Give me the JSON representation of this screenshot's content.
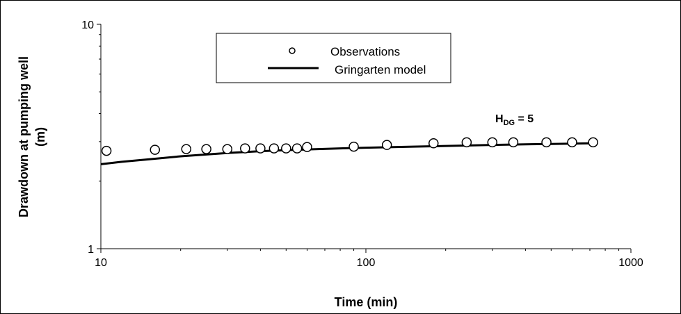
{
  "chart_data": {
    "type": "scatter",
    "x_scale": "log",
    "y_scale": "log",
    "xlabel": "Time (min)",
    "ylabel": "Drawdown at pumping well\n(m)",
    "xlim": [
      10,
      1000
    ],
    "ylim": [
      1,
      10
    ],
    "x_ticks": [
      "10",
      "100",
      "1000"
    ],
    "y_ticks": [
      "1",
      "10"
    ],
    "grid": false,
    "legend_position": "top-center",
    "series": [
      {
        "name": "Observations",
        "type": "scatter",
        "marker": "open-circle",
        "color": "#000000",
        "x": [
          10.5,
          16,
          21,
          25,
          30,
          35,
          40,
          45,
          50,
          55,
          60,
          90,
          120,
          180,
          240,
          300,
          360,
          480,
          600,
          720
        ],
        "y": [
          2.73,
          2.76,
          2.78,
          2.78,
          2.78,
          2.8,
          2.8,
          2.8,
          2.8,
          2.8,
          2.84,
          2.85,
          2.9,
          2.95,
          2.98,
          2.98,
          2.98,
          2.98,
          2.98,
          2.98
        ]
      },
      {
        "name": "Gringarten model",
        "type": "line",
        "color": "#000000",
        "x": [
          10,
          12,
          15,
          20,
          25,
          30,
          40,
          50,
          60,
          80,
          100,
          150,
          200,
          300,
          400,
          500,
          600,
          720
        ],
        "y": [
          2.38,
          2.44,
          2.5,
          2.58,
          2.63,
          2.67,
          2.72,
          2.75,
          2.77,
          2.8,
          2.82,
          2.85,
          2.87,
          2.9,
          2.92,
          2.93,
          2.94,
          2.95
        ]
      }
    ],
    "annotations": [
      {
        "text_main": "H",
        "text_sub": "DG",
        "text_rest": " = 5",
        "x": 900,
        "y": 3.6
      }
    ]
  }
}
